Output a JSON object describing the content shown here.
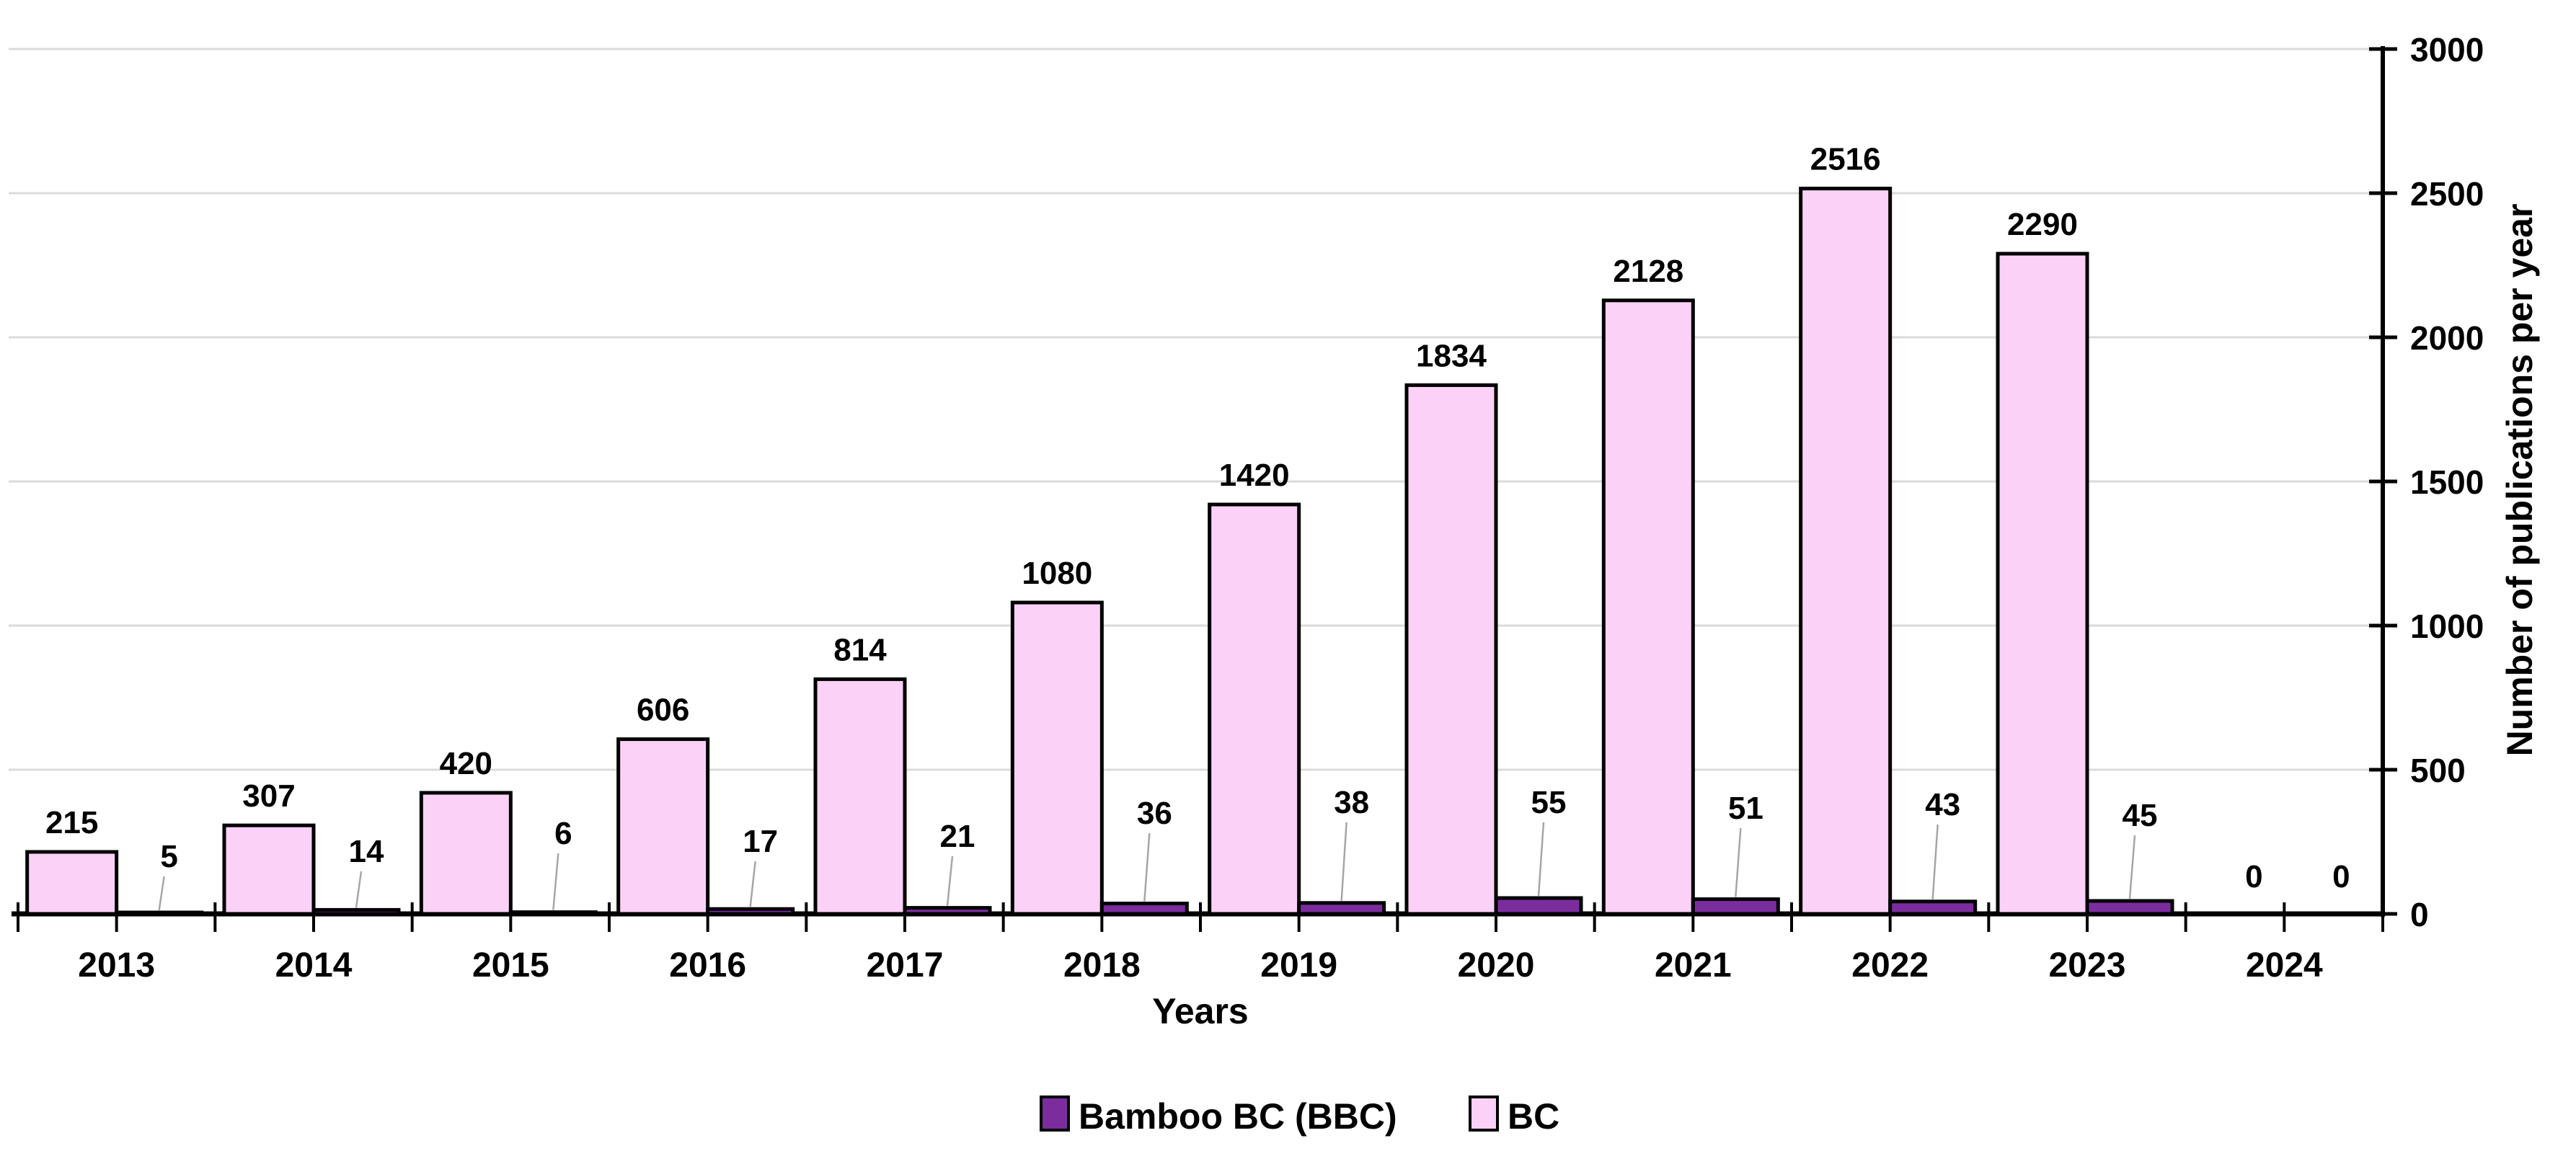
{
  "chart_data": {
    "type": "bar",
    "title": "",
    "xlabel": "Years",
    "ylabel": "Number of publications per year",
    "categories": [
      "2013",
      "2014",
      "2015",
      "2016",
      "2017",
      "2018",
      "2019",
      "2020",
      "2021",
      "2022",
      "2023",
      "2024"
    ],
    "series": [
      {
        "name": "Bamboo BC (BBC)",
        "color": "#7B2D9E",
        "border_color": "#000000",
        "values": [
          5,
          14,
          6,
          17,
          21,
          36,
          38,
          55,
          51,
          43,
          45,
          0
        ]
      },
      {
        "name": "BC",
        "color": "#FBD1F7",
        "border_color": "#000000",
        "values": [
          215,
          307,
          420,
          606,
          814,
          1080,
          1420,
          1834,
          2128,
          2516,
          2290,
          0
        ]
      }
    ],
    "ylim": [
      0,
      3000
    ],
    "yticks": [
      0,
      500,
      1000,
      1500,
      2000,
      2500,
      3000
    ],
    "y_axis_side": "right",
    "grid": true,
    "gridline_color": "#DBDBDB",
    "axis_color": "#000000",
    "text_color": "#000000",
    "data_label_leader_color": "#A6A6A6",
    "data_labels": true,
    "legend": {
      "position": "bottom-center",
      "items": [
        "Bamboo BC (BBC)",
        "BC"
      ]
    },
    "background": "#FFFFFF"
  }
}
